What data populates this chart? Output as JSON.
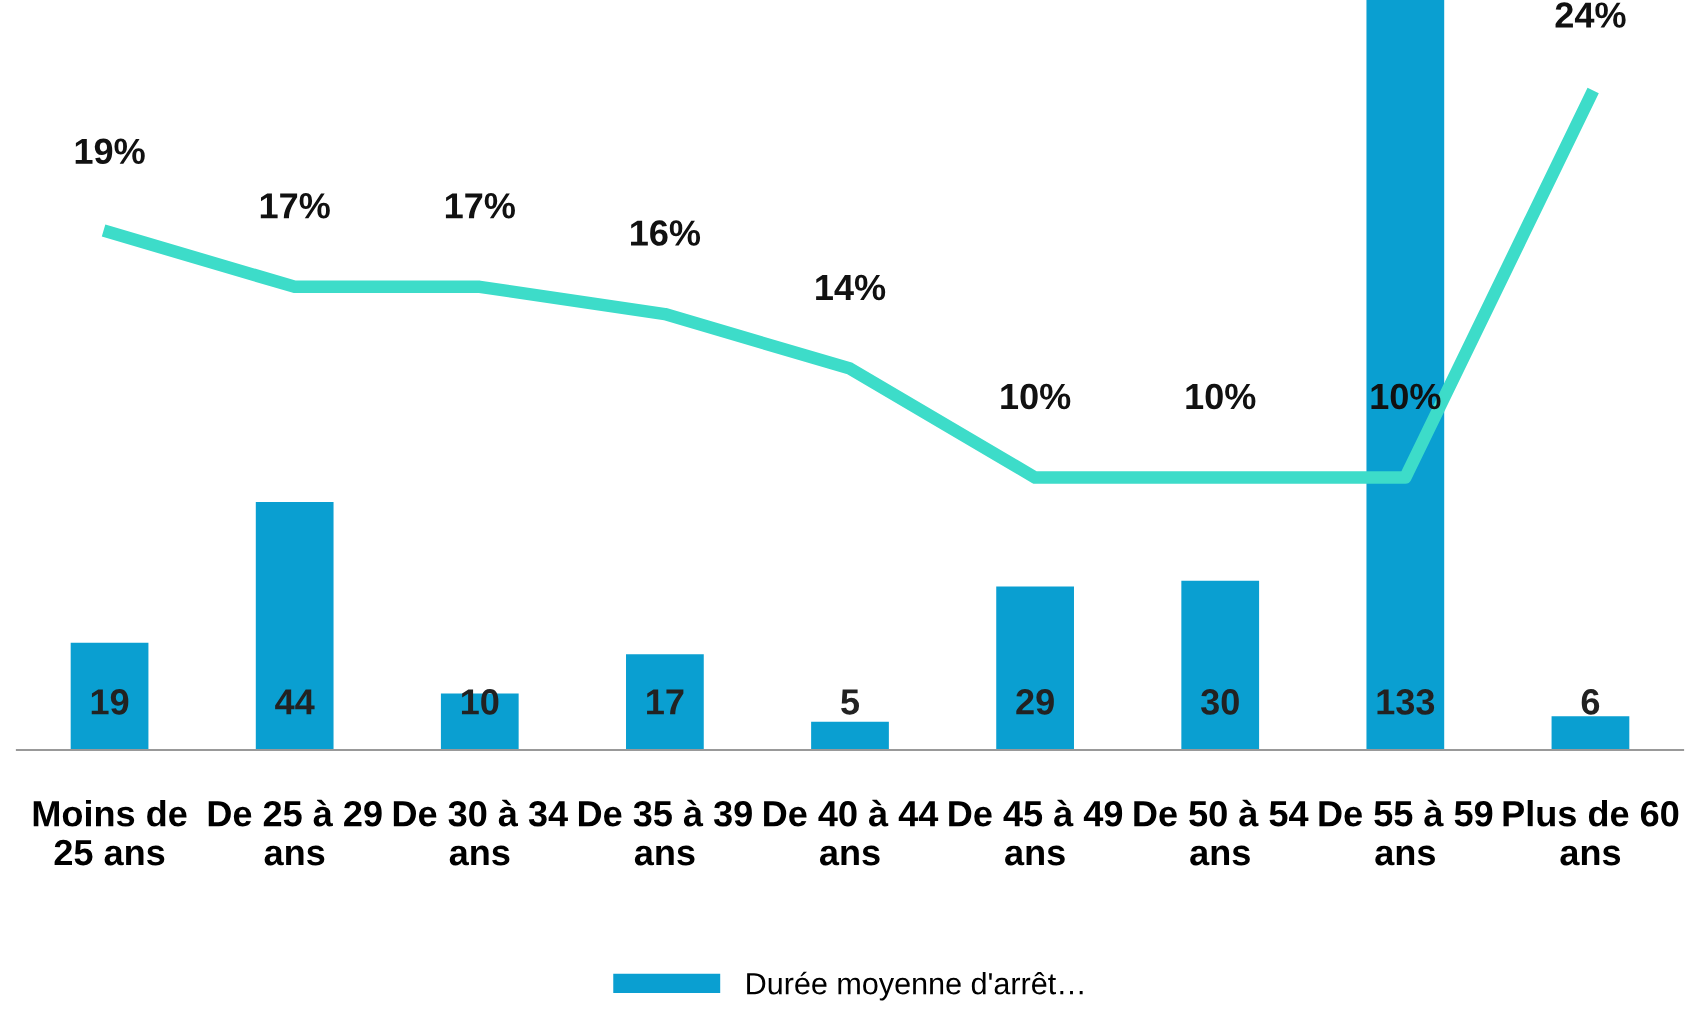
{
  "chart_data": {
    "type": "bar",
    "categories": [
      "Moins de 25 ans",
      "De 25 à 29 ans",
      "De 30 à 34 ans",
      "De 35 à 39 ans",
      "De 40 à 44 ans",
      "De 45 à 49 ans",
      "De 50 à 54 ans",
      "De 55 à 59 ans",
      "Plus de 60 ans"
    ],
    "series": [
      {
        "name": "Durée moyenne d'arrêt…",
        "color": "#0a9fd1",
        "values": [
          19,
          44,
          10,
          17,
          5,
          29,
          30,
          133,
          6
        ]
      },
      {
        "type": "line",
        "axis": "y2",
        "color": "#3ddcc9",
        "values": [
          19,
          17,
          17,
          16,
          14,
          10,
          10,
          10,
          24
        ],
        "value_labels": [
          "19%",
          "17%",
          "17%",
          "16%",
          "14%",
          "10%",
          "10%",
          "10%",
          "24%"
        ]
      }
    ],
    "tick_labels": "x",
    "data_labels": true,
    "legend": "bottom",
    "grid": false
  }
}
